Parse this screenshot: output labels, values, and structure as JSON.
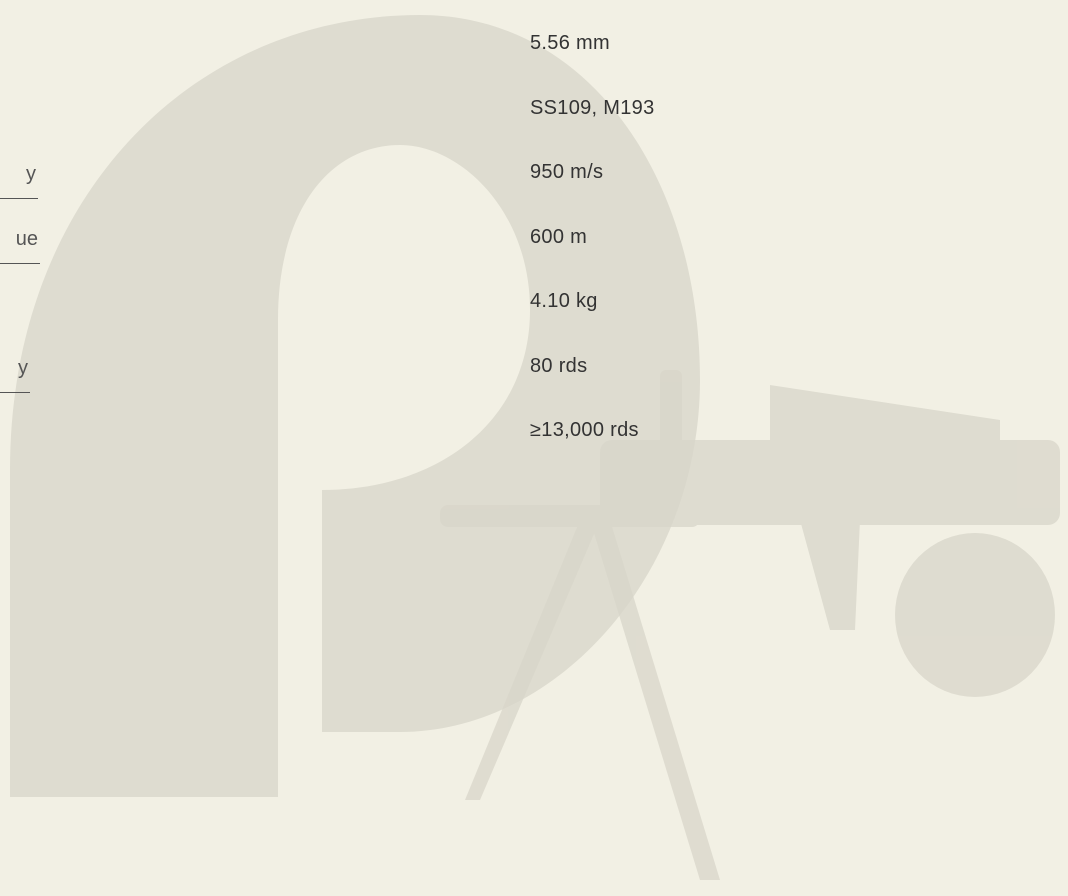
{
  "specs": {
    "labels": [
      {
        "text": "y",
        "row": 2
      },
      {
        "text": "ue",
        "row": 3
      },
      {
        "text": "y",
        "row": 5
      }
    ],
    "values": [
      "5.56 mm",
      "SS109, M193",
      "950 m/s",
      "600 m",
      "4.10 kg",
      "80 rds",
      "≥13,000 rds"
    ]
  }
}
